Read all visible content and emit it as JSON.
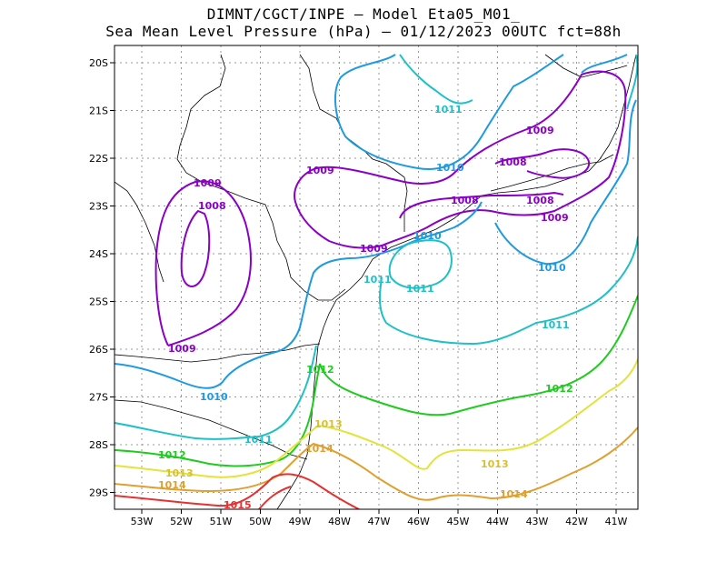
{
  "header": {
    "title_line1": "DIMNT/CGCT/INPE –  Model Eta05_M01_",
    "title_line2": "Sea Mean Level Pressure (hPa) – 01/12/2023 00UTC fct=88h"
  },
  "map": {
    "lat_labels": [
      "20S",
      "21S",
      "22S",
      "23S",
      "24S",
      "25S",
      "26S",
      "27S",
      "28S",
      "29S"
    ],
    "lon_labels": [
      "53W",
      "52W",
      "51W",
      "50W",
      "49W",
      "48W",
      "47W",
      "46W",
      "45W",
      "44W",
      "43W",
      "42W",
      "41W"
    ],
    "isobars": [
      {
        "value": "1008",
        "color": "#8b00c8"
      },
      {
        "value": "1009",
        "color": "#8b00c8"
      },
      {
        "value": "1010",
        "color": "#1e9be0"
      },
      {
        "value": "1011",
        "color": "#1fc0c8"
      },
      {
        "value": "1012",
        "color": "#1ecc1e"
      },
      {
        "value": "1013",
        "color": "#e3e33c"
      },
      {
        "value": "1014",
        "color": "#e0a030"
      },
      {
        "value": "1015",
        "color": "#e83030"
      }
    ],
    "contour_labels": {
      "c1008a": "1008",
      "c1008b": "1008",
      "c1008c": "1008",
      "c1008d": "1008",
      "c1009a": "1009",
      "c1009b": "1009",
      "c1009c": "1009",
      "c1009d": "1009",
      "c1009e": "1009",
      "c1009f": "1009",
      "c1010a": "1010",
      "c1010b": "1010",
      "c1010c": "1010",
      "c1010d": "1010",
      "c1011a": "1011",
      "c1011b": "1011",
      "c1011c": "1011",
      "c1011d": "1011",
      "c1011e": "1011",
      "c1012a": "1012",
      "c1012b": "1012",
      "c1012c": "1012",
      "c1013a": "1013",
      "c1013b": "1013",
      "c1013c": "1013",
      "c1014a": "1014",
      "c1014b": "1014",
      "c1014c": "1014",
      "c1015a": "1015"
    }
  }
}
